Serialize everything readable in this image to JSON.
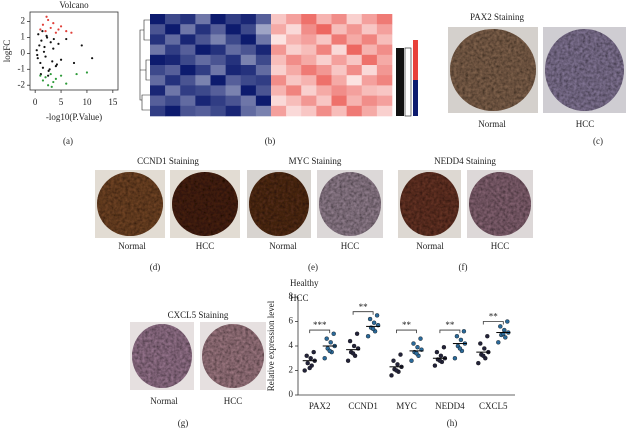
{
  "chart_data": [
    {
      "type": "scatter",
      "label": "(a)",
      "title": "Volcano",
      "x_label": "-log10(P.Value)",
      "y_label": "logFC",
      "xlim": [
        -1,
        16
      ],
      "ylim": [
        -2.3,
        2.6
      ],
      "xticks": [
        0,
        5,
        10,
        15
      ],
      "yticks": [
        -2,
        -1,
        0,
        1,
        2
      ],
      "series": [
        {
          "color": "#111111",
          "x": [
            0.3,
            0.5,
            0.8,
            1.0,
            1.2,
            1.5,
            1.8,
            2.0,
            2.3,
            2.6,
            3.0,
            3.3,
            3.6,
            4.0,
            4.5,
            5.0,
            0.6,
            1.1,
            1.7,
            2.2,
            2.8,
            3.5,
            4.2,
            6.0,
            7.5,
            9.0,
            11.0,
            0.4,
            1.4,
            2.5
          ],
          "values": [
            0.2,
            -0.3,
            0.5,
            -0.6,
            0.8,
            -0.9,
            0.4,
            -0.2,
            1.0,
            -1.1,
            0.7,
            -0.5,
            0.9,
            -0.8,
            0.6,
            -0.4,
            1.2,
            -1.3,
            0.1,
            1.1,
            -1.0,
            0.3,
            -0.7,
            0.9,
            -0.6,
            0.5,
            -0.3,
            -0.1,
            1.4,
            -1.4
          ]
        },
        {
          "color": "#e0403a",
          "x": [
            1.0,
            1.5,
            2.0,
            2.5,
            3.0,
            3.5,
            4.0,
            5.0,
            6.0,
            7.0,
            2.2,
            4.5
          ],
          "values": [
            1.5,
            1.8,
            1.4,
            2.1,
            1.6,
            1.9,
            1.3,
            1.7,
            1.4,
            1.3,
            2.3,
            1.5
          ]
        },
        {
          "color": "#2e9b3a",
          "x": [
            1.0,
            1.5,
            2.0,
            2.5,
            3.0,
            3.5,
            4.0,
            5.0,
            6.0,
            8.0,
            10.0,
            3.2
          ],
          "values": [
            -1.4,
            -1.7,
            -1.5,
            -2.0,
            -1.3,
            -1.8,
            -1.6,
            -1.4,
            -1.9,
            -1.3,
            -1.2,
            -2.1
          ]
        }
      ]
    },
    {
      "type": "heatmap",
      "label": "(b)",
      "colors": [
        "#0d1b6e",
        "#ffffff",
        "#e8413a"
      ],
      "clim": [
        -2,
        2
      ],
      "values": [
        [
          -2,
          -1.6,
          -1.8,
          -1.2,
          -2,
          -1.7,
          -1.9,
          -1.4,
          0.6,
          1.0,
          1.5,
          0.8,
          1.2,
          0.5,
          1.0,
          1.4
        ],
        [
          -1.5,
          -2,
          -1.2,
          -1.8,
          -1.4,
          -2,
          -1.6,
          -0.8,
          0.9,
          0.4,
          1.2,
          1.6,
          0.7,
          1.1,
          0.6,
          1.0
        ],
        [
          -1.8,
          -1.3,
          -1.9,
          -1.5,
          -1.1,
          -1.6,
          -2,
          -1.2,
          0.3,
          0.8,
          1.0,
          0.6,
          1.4,
          0.9,
          1.3,
          0.7
        ],
        [
          -1.2,
          -1.7,
          -1.4,
          -2,
          -1.8,
          -1.3,
          -1.5,
          -1.9,
          1.1,
          0.5,
          0.7,
          1.3,
          0.4,
          1.6,
          0.8,
          1.2
        ],
        [
          -2,
          -1.9,
          -1.6,
          -1.3,
          -1.5,
          -1.8,
          -1.1,
          -1.6,
          0.7,
          1.2,
          0.9,
          0.5,
          1.0,
          0.6,
          1.5,
          0.9
        ],
        [
          -1.6,
          -1.4,
          -2,
          -1.7,
          -1.2,
          -1.9,
          -1.8,
          -1.3,
          0.5,
          0.9,
          1.4,
          1.1,
          0.6,
          1.2,
          0.4,
          1.1
        ],
        [
          -1.3,
          -1.8,
          -1.5,
          -1.1,
          -2,
          -1.4,
          -1.6,
          -1.7,
          1.2,
          0.6,
          0.8,
          1.5,
          0.9,
          0.3,
          1.0,
          1.3
        ],
        [
          -1.9,
          -1.2,
          -1.7,
          -1.6,
          -1.4,
          -1.1,
          -2,
          -1.5,
          0.8,
          1.3,
          0.5,
          0.9,
          1.2,
          1.0,
          0.7,
          0.6
        ],
        [
          -1.4,
          -1.6,
          -1.3,
          -1.9,
          -1.7,
          -1.5,
          -1.2,
          -2,
          0.4,
          0.7,
          1.1,
          0.6,
          1.5,
          0.8,
          1.2,
          1.0
        ],
        [
          -1.7,
          -2,
          -1.5,
          -1.4,
          -1.6,
          -1.9,
          -1.3,
          -1.1,
          1.0,
          0.4,
          0.6,
          1.2,
          0.7,
          1.4,
          0.9,
          0.5
        ]
      ]
    },
    {
      "type": "dot",
      "label": "(h)",
      "y_label": "Relative expression level",
      "categories": [
        "PAX2",
        "CCND1",
        "MYC",
        "NEDD4",
        "CXCL5"
      ],
      "ylim": [
        0,
        8
      ],
      "yticks": [
        0,
        2,
        4,
        6,
        8
      ],
      "series": [
        {
          "name": "Healthy",
          "color": "#23233a",
          "values": [
            [
              2.0,
              2.4,
              2.6,
              2.8,
              3.0,
              3.2,
              3.5,
              2.2
            ],
            [
              2.8,
              3.2,
              3.5,
              3.8,
              4.0,
              4.4,
              5.0,
              3.4
            ],
            [
              1.6,
              1.9,
              2.1,
              2.3,
              2.5,
              2.8,
              3.3,
              2.0
            ],
            [
              2.4,
              2.7,
              2.9,
              3.0,
              3.2,
              3.5,
              3.9,
              2.8
            ],
            [
              2.6,
              3.0,
              3.3,
              3.5,
              3.8,
              4.2,
              4.8,
              3.2
            ]
          ],
          "means": [
            2.8,
            3.7,
            2.3,
            3.0,
            3.5
          ]
        },
        {
          "name": "HCC",
          "color": "#2b6a9a",
          "values": [
            [
              3.0,
              3.5,
              3.8,
              4.0,
              4.3,
              4.6,
              5.0,
              3.6
            ],
            [
              4.8,
              5.2,
              5.5,
              5.7,
              5.9,
              6.2,
              6.5,
              5.4
            ],
            [
              2.8,
              3.2,
              3.5,
              3.7,
              3.9,
              4.2,
              4.6,
              3.4
            ],
            [
              3.0,
              3.6,
              4.0,
              4.2,
              4.5,
              4.8,
              5.2,
              3.8
            ],
            [
              4.3,
              4.7,
              4.9,
              5.1,
              5.3,
              5.6,
              6.0,
              5.0
            ]
          ],
          "means": [
            4.0,
            5.6,
            3.6,
            4.2,
            5.1
          ]
        }
      ],
      "annotations": [
        {
          "text": "***",
          "category": 0,
          "y": 5.3
        },
        {
          "text": "**",
          "category": 1,
          "y": 6.8
        },
        {
          "text": "**",
          "category": 2,
          "y": 5.3
        },
        {
          "text": "**",
          "category": 3,
          "y": 5.3
        },
        {
          "text": "**",
          "category": 4,
          "y": 6.0
        }
      ]
    }
  ],
  "staining": [
    {
      "title": "PAX2 Staining",
      "left": "Normal",
      "right": "HCC",
      "label": "(c)"
    },
    {
      "title": "CCND1 Staining",
      "left": "Normal",
      "right": "HCC",
      "label": "(d)"
    },
    {
      "title": "MYC Staining",
      "left": "Normal",
      "right": "HCC",
      "label": "(e)"
    },
    {
      "title": "NEDD4 Staining",
      "left": "Normal",
      "right": "HCC",
      "label": "(f)"
    },
    {
      "title": "CXCL5 Staining",
      "left": "Normal",
      "right": "HCC",
      "label": "(g)"
    }
  ]
}
